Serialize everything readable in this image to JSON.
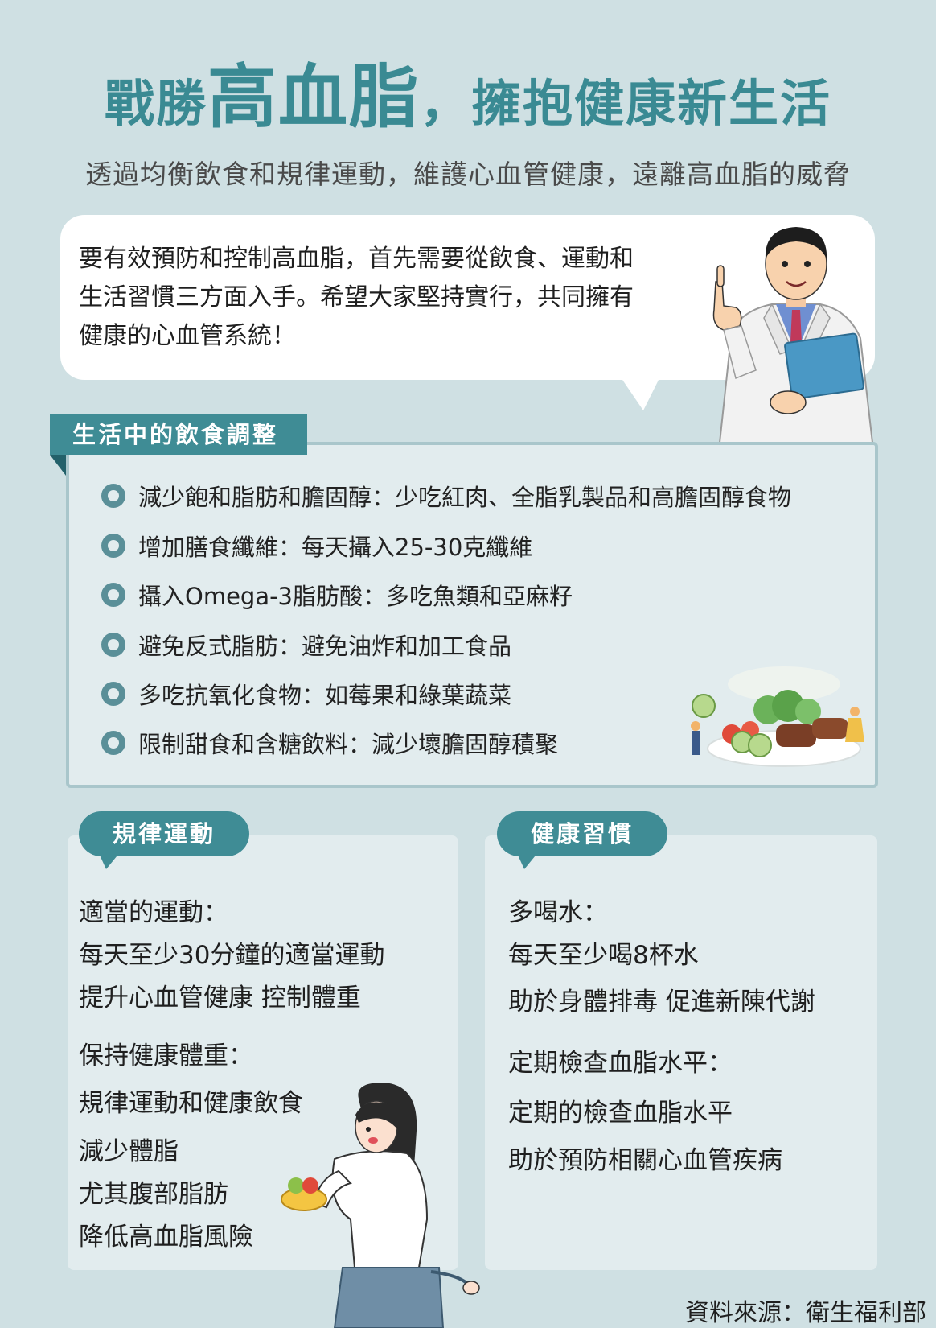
{
  "header": {
    "title_part1": "戰勝",
    "title_part2": "高血脂",
    "title_part3": "，擁抱健康新生活",
    "subtitle": "透過均衡飲食和規律運動，維護心血管健康，遠離高血脂的威脅"
  },
  "intro": {
    "lines": [
      "要有效預防和控制高血脂，首先需要從飲食、運動和",
      "生活習慣三方面入手。希望大家堅持實行，共同擁有",
      "健康的心血管系統！"
    ]
  },
  "diet": {
    "heading": "生活中的飲食調整",
    "items": [
      "減少飽和脂肪和膽固醇：少吃紅肉、全脂乳製品和高膽固醇食物",
      "增加膳食纖維：每天攝入25-30克纖維",
      "攝入Omega-3脂肪酸：多吃魚類和亞麻籽",
      "避免反式脂肪：避免油炸和加工食品",
      "多吃抗氧化食物：如莓果和綠葉蔬菜",
      "限制甜食和含糖飲料：減少壞膽固醇積聚"
    ]
  },
  "exercise": {
    "heading": "規律運動",
    "lines": [
      "適當的運動：",
      "每天至少30分鐘的適當運動",
      "提升心血管健康  控制體重",
      "保持健康體重：",
      "規律運動和健康飲食",
      "減少體脂",
      "尤其腹部脂肪",
      "降低高血脂風險"
    ]
  },
  "habits": {
    "heading": "健康習慣",
    "lines": [
      "多喝水：",
      "每天至少喝8杯水",
      "助於身體排毒  促進新陳代謝",
      "定期檢查血脂水平：",
      "定期的檢查血脂水平",
      "助於預防相關心血管疾病"
    ]
  },
  "footer": {
    "source": "資料來源：衛生福利部"
  },
  "colors": {
    "accent": "#3f8c95",
    "background": "#cfe0e3",
    "card": "#e2ecee"
  },
  "icons": {
    "bullet": "ring-bullet-icon",
    "doctor": "doctor-illustration",
    "salad": "salad-plate-illustration",
    "woman": "woman-weight-loss-illustration"
  }
}
